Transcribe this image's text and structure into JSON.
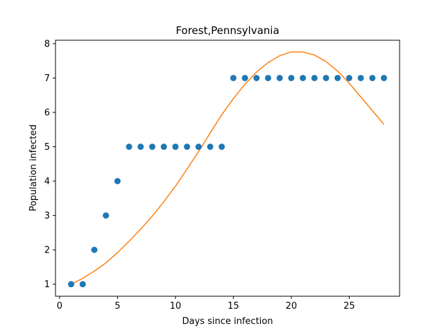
{
  "chart_data": {
    "type": "scatter",
    "title": "Forest,Pennsylvania",
    "xlabel": "Days since infection",
    "ylabel": "Population infected",
    "xlim": [
      -0.35,
      29.35
    ],
    "ylim": [
      0.65,
      8.1
    ],
    "xticks": [
      0,
      5,
      10,
      15,
      20,
      25
    ],
    "yticks": [
      1,
      2,
      3,
      4,
      5,
      6,
      7,
      8
    ],
    "grid": false,
    "series": [
      {
        "kind": "scatter",
        "color": "#1f77b4",
        "x": [
          1,
          2,
          3,
          4,
          5,
          6,
          7,
          8,
          9,
          10,
          11,
          12,
          13,
          14,
          15,
          16,
          17,
          18,
          19,
          20,
          21,
          22,
          23,
          24,
          25,
          26,
          27,
          28
        ],
        "y": [
          1,
          1,
          2,
          3,
          4,
          5,
          5,
          5,
          5,
          5,
          5,
          5,
          5,
          5,
          7,
          7,
          7,
          7,
          7,
          7,
          7,
          7,
          7,
          7,
          7,
          7,
          7,
          7
        ]
      },
      {
        "kind": "line",
        "color": "#ff7f0e",
        "x": [
          1,
          2,
          3,
          4,
          5,
          6,
          7,
          8,
          9,
          10,
          11,
          12,
          13,
          14,
          15,
          16,
          17,
          18,
          19,
          20,
          21,
          22,
          23,
          24,
          25,
          26,
          27,
          28
        ],
        "y": [
          1.0,
          1.17,
          1.38,
          1.62,
          1.92,
          2.25,
          2.6,
          2.98,
          3.4,
          3.85,
          4.35,
          4.86,
          5.4,
          5.93,
          6.4,
          6.82,
          7.17,
          7.45,
          7.65,
          7.76,
          7.76,
          7.67,
          7.48,
          7.2,
          6.85,
          6.45,
          6.05,
          5.65
        ]
      }
    ]
  }
}
